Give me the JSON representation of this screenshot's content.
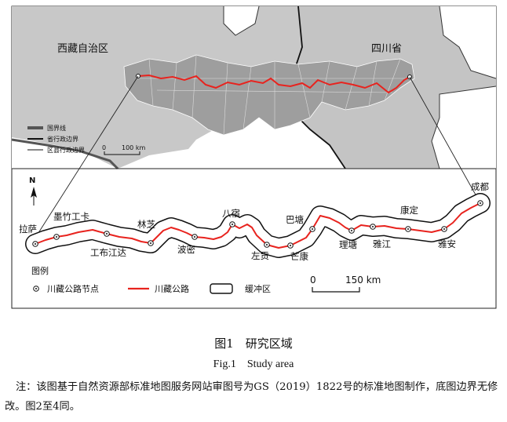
{
  "top_map": {
    "region_west": "西藏自治区",
    "region_east": "四川省",
    "legend": [
      "国界线",
      "省行政边界",
      "区县行政边界"
    ],
    "scale": [
      "0",
      "100 km"
    ]
  },
  "detail_map": {
    "north_arrow": "N",
    "nodes": [
      {
        "name": "拉萨"
      },
      {
        "name": "墨竹工卡"
      },
      {
        "name": "工布江达"
      },
      {
        "name": "林芝"
      },
      {
        "name": "波密"
      },
      {
        "name": "八宿"
      },
      {
        "name": "左贡"
      },
      {
        "name": "芒康"
      },
      {
        "name": "巴塘"
      },
      {
        "name": "理塘"
      },
      {
        "name": "雅江"
      },
      {
        "name": "康定"
      },
      {
        "name": "雅安"
      },
      {
        "name": "成都"
      }
    ],
    "legend_title": "图例",
    "legend_items": [
      "川藏公路节点",
      "川藏公路",
      "缓冲区"
    ],
    "scale": [
      "0",
      "150 km"
    ],
    "colors": {
      "road": "#e8231e",
      "provinces": "#c7c7c7",
      "corridor": "#9c9c9c"
    }
  },
  "caption": {
    "cn": "图1　研究区域",
    "en": "Fig.1　Study area"
  },
  "note": "注：该图基于自然资源部标准地图服务网站审图号为GS（2019）1822号的标准地图制作，底图边界无修改。图2至4同。"
}
